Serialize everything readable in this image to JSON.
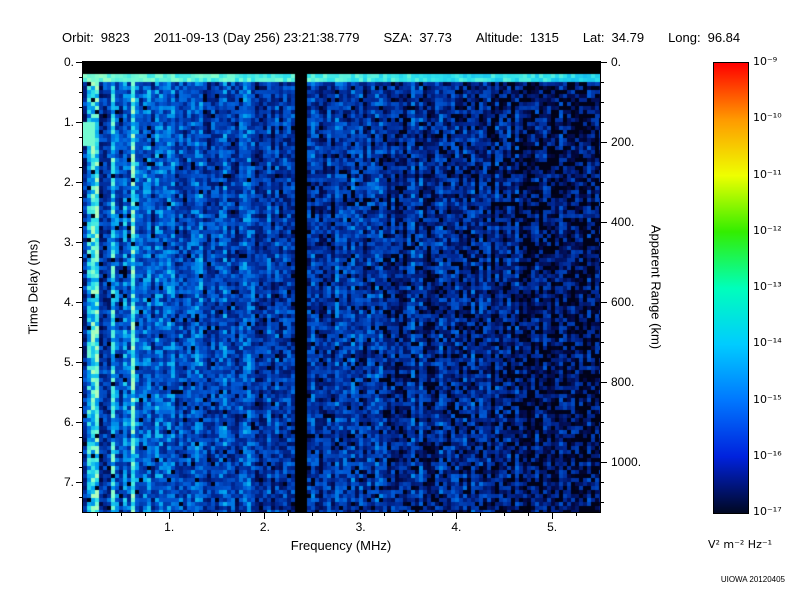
{
  "header": {
    "orbit_label": "Orbit:",
    "orbit": "9823",
    "datetime": "2011-09-13 (Day 256) 23:21:38.779",
    "sza_label": "SZA:",
    "sza": "37.73",
    "altitude_label": "Altitude:",
    "altitude": "1315",
    "lat_label": "Lat:",
    "lat": "34.79",
    "long_label": "Long:",
    "long": "96.84"
  },
  "chart_data": {
    "type": "heatmap",
    "xlabel": "Frequency (MHz)",
    "ylabel_left": "Time Delay (ms)",
    "ylabel_right": "Apparent Range (km)",
    "x_range_mhz": [
      0.1,
      5.5
    ],
    "y_range_ms": [
      0.0,
      7.5
    ],
    "right_axis_range_km": [
      0,
      1125
    ],
    "x_ticks": [
      {
        "value": 1,
        "label": "1."
      },
      {
        "value": 2,
        "label": "2."
      },
      {
        "value": 3,
        "label": "3."
      },
      {
        "value": 4,
        "label": "4."
      },
      {
        "value": 5,
        "label": "5."
      }
    ],
    "x_minor_step": 0.25,
    "y_ticks_left": [
      {
        "value": 0,
        "label": "0."
      },
      {
        "value": 1,
        "label": "1."
      },
      {
        "value": 2,
        "label": "2."
      },
      {
        "value": 3,
        "label": "3."
      },
      {
        "value": 4,
        "label": "4."
      },
      {
        "value": 5,
        "label": "5."
      },
      {
        "value": 6,
        "label": "6."
      },
      {
        "value": 7,
        "label": "7."
      }
    ],
    "y_minor_step_ms": 0.25,
    "y_ticks_right": [
      {
        "value": 0,
        "label": "0."
      },
      {
        "value": 200,
        "label": "200."
      },
      {
        "value": 400,
        "label": "400."
      },
      {
        "value": 600,
        "label": "600."
      },
      {
        "value": 800,
        "label": "800."
      },
      {
        "value": 1000,
        "label": "1000."
      }
    ],
    "y_minor_step_km": 50,
    "features": {
      "top_blank_ms": [
        0.0,
        0.18
      ],
      "surface_echo_band_ms": [
        0.18,
        0.33
      ],
      "blanked_band_mhz": [
        2.3,
        2.42
      ],
      "striped_low_freq_below_mhz": 0.8,
      "bright_blob": {
        "freq_mhz_max": 0.22,
        "time_ms": [
          1.0,
          1.4
        ]
      },
      "noise_seed": 1234
    },
    "colormap_stops": [
      [
        0.0,
        0,
        0,
        10
      ],
      [
        0.12,
        2,
        8,
        70
      ],
      [
        0.3,
        0,
        40,
        150
      ],
      [
        0.5,
        0,
        90,
        215
      ],
      [
        0.65,
        0,
        160,
        240
      ],
      [
        0.78,
        45,
        225,
        235
      ],
      [
        0.9,
        130,
        255,
        205
      ],
      [
        1.0,
        220,
        255,
        170
      ]
    ],
    "colorbar": {
      "tick_labels": [
        "10⁻⁹",
        "10⁻¹⁰",
        "10⁻¹¹",
        "10⁻¹²",
        "10⁻¹³",
        "10⁻¹⁴",
        "10⁻¹⁵",
        "10⁻¹⁶",
        "10⁻¹⁷"
      ],
      "unit": "V² m⁻² Hz⁻¹",
      "colors": [
        "#ff0000",
        "#ff9900",
        "#eeff00",
        "#33ee00",
        "#00ffbb",
        "#00ccff",
        "#0077ff",
        "#0022dd",
        "#000822"
      ]
    }
  },
  "footer": {
    "credit": "UIOWA 20120405"
  }
}
